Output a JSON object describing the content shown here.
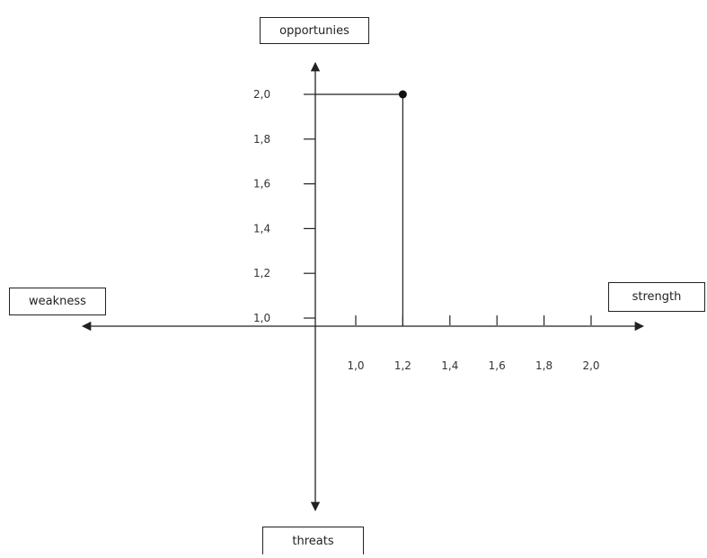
{
  "chart_data": {
    "type": "scatter",
    "title": "",
    "quadrant_labels": {
      "top": "opportunies",
      "bottom": "threats",
      "left": "weakness",
      "right": "strength"
    },
    "x_ticks": [
      "1,0",
      "1,2",
      "1,4",
      "1,6",
      "1,8",
      "2,0"
    ],
    "y_ticks": [
      "1,0",
      "1,2",
      "1,4",
      "1,6",
      "1,8",
      "2,0"
    ],
    "point": {
      "x": 1.2,
      "y": 2.0
    },
    "xlim": [
      1.0,
      2.0
    ],
    "ylim": [
      1.0,
      2.0
    ]
  }
}
